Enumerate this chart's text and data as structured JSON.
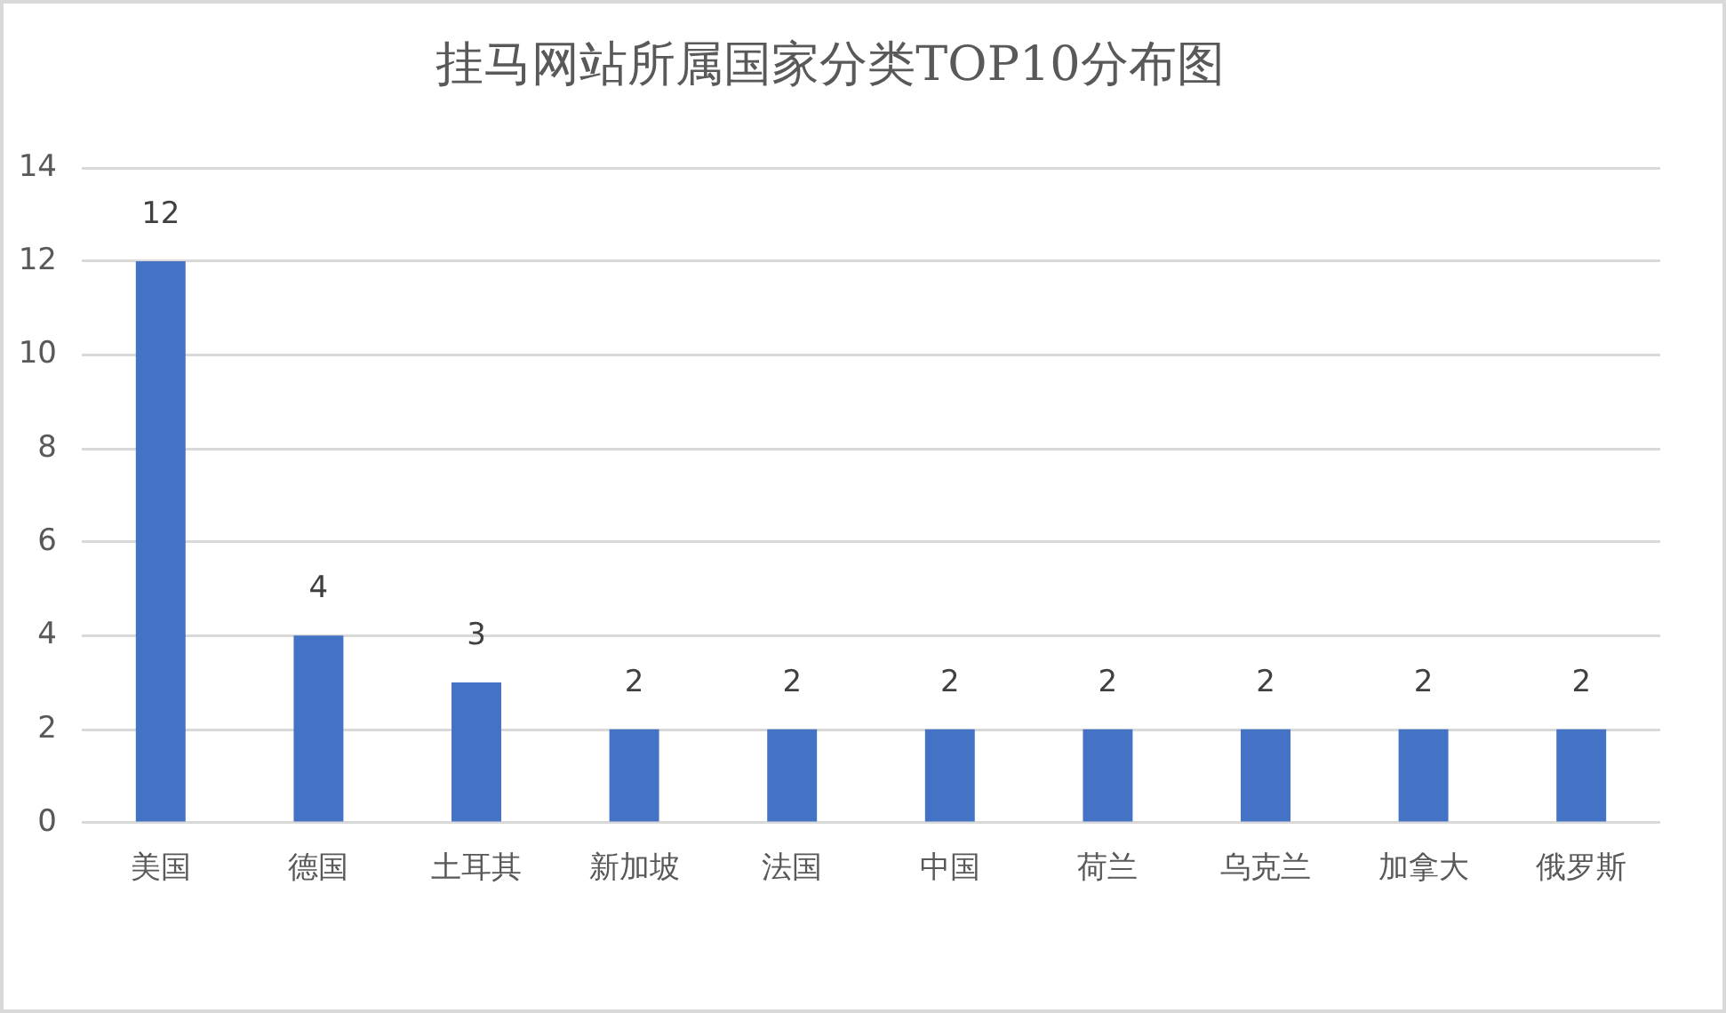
{
  "chart_data": {
    "type": "bar",
    "title": "挂马网站所属国家分类TOP10分布图",
    "categories": [
      "美国",
      "德国",
      "土耳其",
      "新加坡",
      "法国",
      "中国",
      "荷兰",
      "乌克兰",
      "加拿大",
      "俄罗斯"
    ],
    "values": [
      12,
      4,
      3,
      2,
      2,
      2,
      2,
      2,
      2,
      2
    ],
    "color": "#4472c4",
    "ylim": [
      0,
      14
    ],
    "yticks": [
      0,
      2,
      4,
      6,
      8,
      10,
      12,
      14
    ],
    "grid": "y",
    "data_labels": true
  }
}
